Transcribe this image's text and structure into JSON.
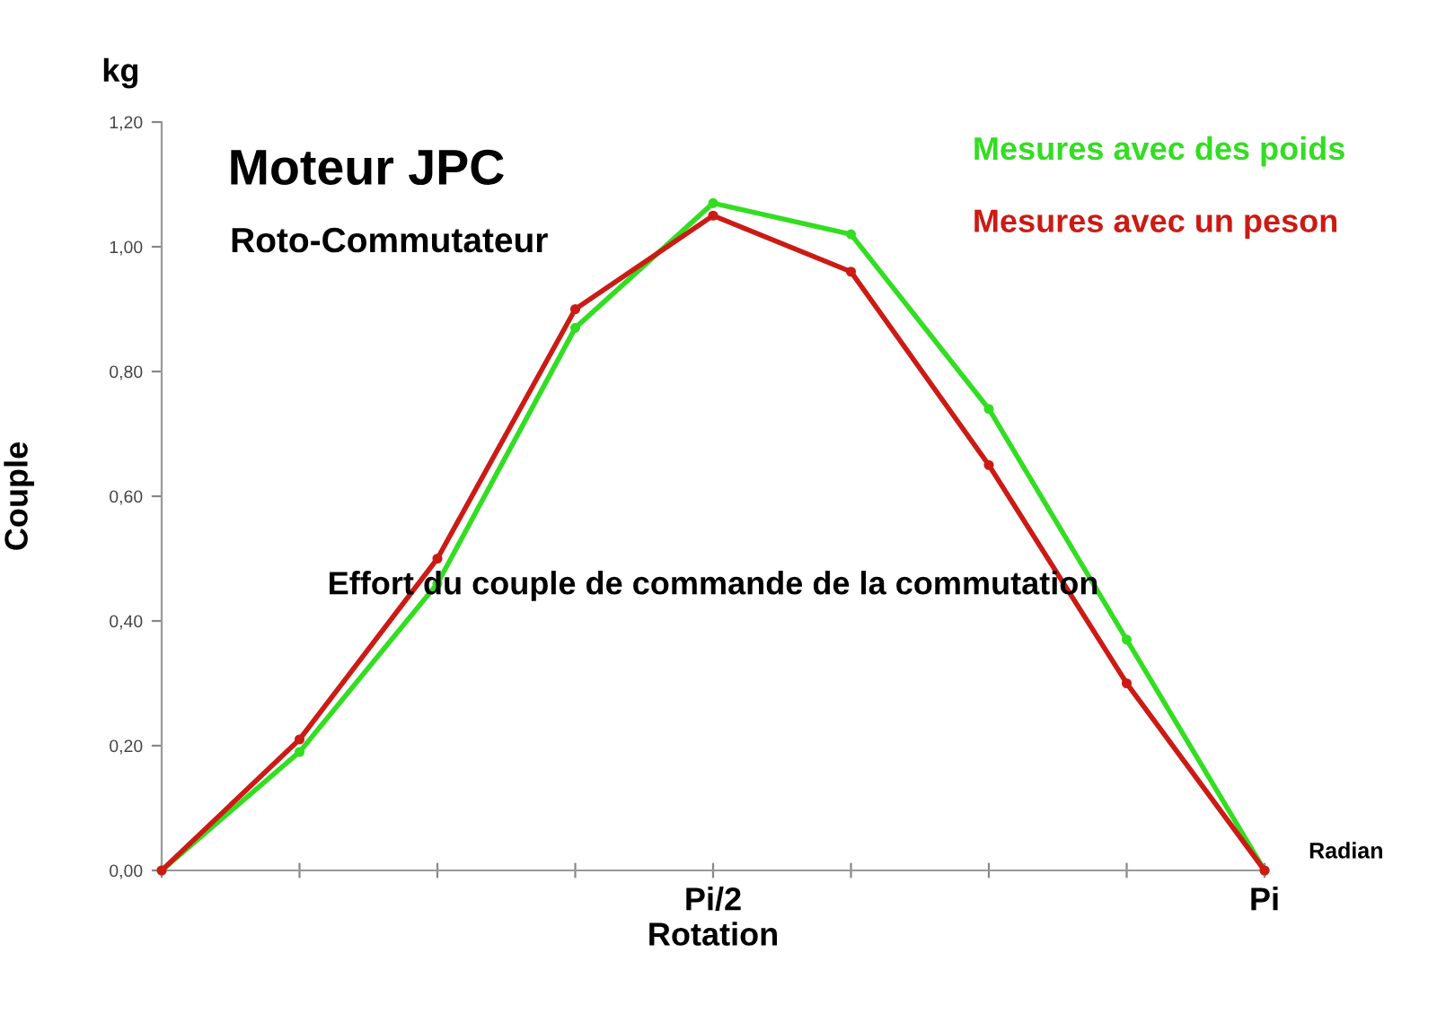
{
  "chart_data": {
    "type": "line",
    "title": "Moteur JPC",
    "subtitle": "Roto-Commutateur",
    "xlabel": "Rotation",
    "ylabel": "Couple",
    "annotations": [
      "kg",
      "Effort du couple de commande de la commutation",
      "Radian"
    ],
    "categories": [
      null,
      null,
      null,
      null,
      "Pi/2",
      null,
      null,
      null,
      "Pi"
    ],
    "series": [
      {
        "name": "Mesures avec des poids",
        "color": "#33dd22",
        "values": [
          0,
          0.19,
          0.46,
          0.87,
          1.07,
          1.02,
          0.74,
          0.37,
          0
        ]
      },
      {
        "name": "Mesures avec un peson",
        "color": "#cc1a14",
        "values": [
          0,
          0.21,
          0.5,
          0.9,
          1.05,
          0.96,
          0.65,
          0.3,
          0
        ]
      }
    ],
    "ylim": [
      0,
      1.2
    ],
    "yticks": [
      {
        "value": 0,
        "label": "0,00"
      },
      {
        "value": 0.2,
        "label": "0,20"
      },
      {
        "value": 0.4,
        "label": "0,40"
      },
      {
        "value": 0.6,
        "label": "0,60"
      },
      {
        "value": 0.8,
        "label": "0,80"
      },
      {
        "value": 1.0,
        "label": "1,00"
      },
      {
        "value": 1.2,
        "label": "1,20"
      }
    ],
    "grid": false,
    "legend": "top right",
    "marker": "circle",
    "line_style": "solid"
  }
}
